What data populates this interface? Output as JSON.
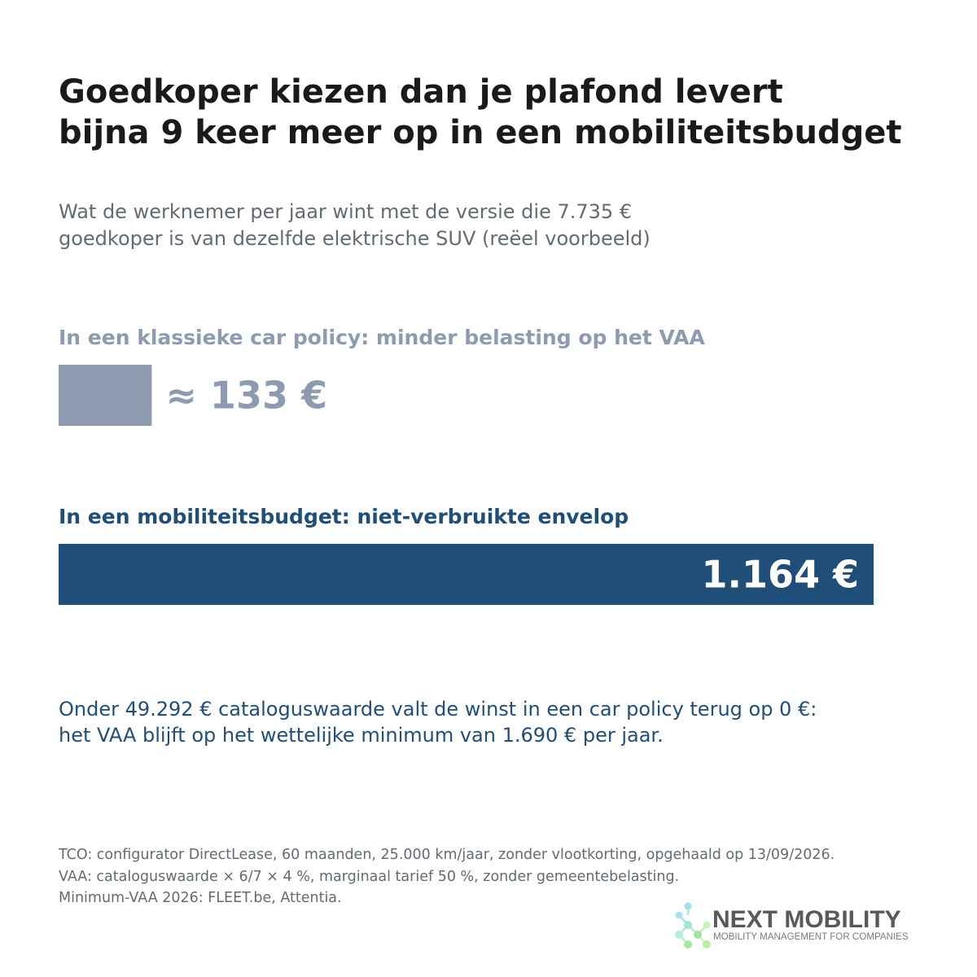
{
  "header": {
    "title_lines": [
      "Goedkoper kiezen dan je plafond levert",
      "bijna 9 keer meer op in een mobiliteitsbudget"
    ],
    "subtitle_lines": [
      "Wat de werknemer per jaar wint met de versie die 7.735 €",
      "goedkoper is van dezelfde elektrische SUV (reëel voorbeeld)"
    ]
  },
  "colors": {
    "car_policy": "#8c9bb0",
    "mobility_budget": "#1f4e79",
    "title": "#1a1a1a",
    "muted": "#646a73",
    "logo_text": "#595959"
  },
  "chart_data": {
    "type": "bar",
    "orientation": "horizontal",
    "categories": [
      "In een klassieke car policy: minder belasting op het VAA",
      "In een mobiliteitsbudget: niet-verbruikte envelop"
    ],
    "values": [
      133,
      1164
    ],
    "value_labels": [
      "≈ 133 €",
      "1.164 €"
    ],
    "unit": "€",
    "xlim": [
      0,
      1164
    ],
    "grid": false,
    "legend": "none"
  },
  "note_lines": [
    "Onder 49.292 € cataloguswaarde valt de winst in een car policy terug op 0 €:",
    "het VAA blijft op het wettelijke minimum van 1.690 € per jaar."
  ],
  "source_lines": [
    "TCO: configurator DirectLease, 60 maanden, 25.000 km/jaar, zonder vlootkorting, opgehaald op 13/09/2026.",
    "VAA: cataloguswaarde × 6/7 × 4 %, marginaal tarief 50 %, zonder gemeentebelasting.",
    "Minimum-VAA 2026: FLEET.be, Attentia."
  ],
  "logo": {
    "name": "NEXT MOBILITY",
    "tagline": "MOBILITY MANAGEMENT FOR COMPANIES",
    "icon": "molecule-network-icon"
  }
}
